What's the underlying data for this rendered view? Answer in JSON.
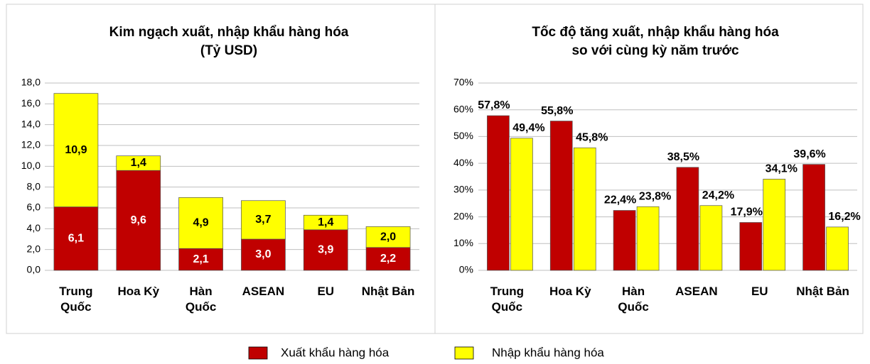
{
  "chart_data": [
    {
      "type": "bar",
      "stacked": true,
      "title": "Kim ngạch xuất, nhập khẩu hàng hóa",
      "subtitle": "(Tỷ USD)",
      "categories": [
        "Trung Quốc",
        "Hoa Kỳ",
        "Hàn Quốc",
        "ASEAN",
        "EU",
        "Nhật Bản"
      ],
      "series": [
        {
          "name": "Xuất khẩu hàng hóa",
          "color": "#c00000",
          "values": [
            6.1,
            9.6,
            2.1,
            3.0,
            3.9,
            2.2
          ],
          "value_labels": [
            "6,1",
            "9,6",
            "2,1",
            "3,0",
            "3,9",
            "2,2"
          ]
        },
        {
          "name": "Nhập khẩu hàng hóa",
          "color": "#ffff00",
          "values": [
            10.9,
            1.4,
            4.9,
            3.7,
            1.4,
            2.0
          ],
          "value_labels": [
            "10,9",
            "1,4",
            "4,9",
            "3,7",
            "1,4",
            "2,0"
          ]
        }
      ],
      "ylim": [
        0,
        18
      ],
      "yticks": [
        {
          "value": 0,
          "label": "0,0"
        },
        {
          "value": 2,
          "label": "2,0"
        },
        {
          "value": 4,
          "label": "4,0"
        },
        {
          "value": 6,
          "label": "6,0"
        },
        {
          "value": 8,
          "label": "8,0"
        },
        {
          "value": 10,
          "label": "10,0"
        },
        {
          "value": 12,
          "label": "12,0"
        },
        {
          "value": 14,
          "label": "14,0"
        },
        {
          "value": 16,
          "label": "16,0"
        },
        {
          "value": 18,
          "label": "18,0"
        }
      ],
      "grid": true
    },
    {
      "type": "bar",
      "stacked": false,
      "title": "Tốc độ tăng xuất, nhập khẩu hàng hóa",
      "subtitle": "so với cùng kỳ năm trước",
      "categories": [
        "Trung Quốc",
        "Hoa Kỳ",
        "Hàn Quốc",
        "ASEAN",
        "EU",
        "Nhật Bản"
      ],
      "series": [
        {
          "color": "#c00000",
          "values": [
            57.8,
            55.8,
            22.4,
            38.5,
            17.9,
            39.6
          ],
          "value_labels": [
            "57,8%",
            "55,8%",
            "22,4%",
            "38,5%",
            "17,9%",
            "39,6%"
          ]
        },
        {
          "color": "#ffff00",
          "values": [
            49.4,
            45.8,
            23.8,
            24.2,
            34.1,
            16.2
          ],
          "value_labels": [
            "49,4%",
            "45,8%",
            "23,8%",
            "24,2%",
            "34,1%",
            "16,2%"
          ]
        }
      ],
      "ylim": [
        0,
        70
      ],
      "yticks": [
        {
          "value": 0,
          "label": "0%"
        },
        {
          "value": 10,
          "label": "10%"
        },
        {
          "value": 20,
          "label": "20%"
        },
        {
          "value": 30,
          "label": "30%"
        },
        {
          "value": 40,
          "label": "40%"
        },
        {
          "value": 50,
          "label": "50%"
        },
        {
          "value": 60,
          "label": "60%"
        },
        {
          "value": 70,
          "label": "70%"
        }
      ],
      "grid": true
    }
  ]
}
